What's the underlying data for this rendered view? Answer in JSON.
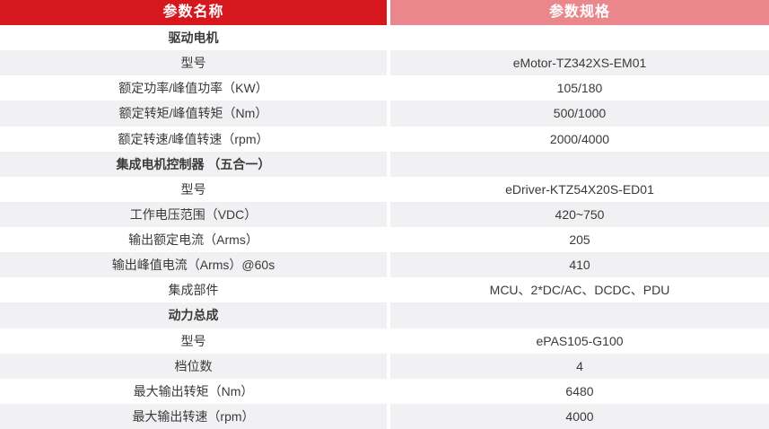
{
  "colors": {
    "header_left_bg": "#d7171e",
    "header_right_bg": "#e9878c",
    "header_text": "#ffffff",
    "row_alt_bg": "#f1f1f3",
    "row_bg": "#ffffff",
    "text": "#3a3a3a"
  },
  "table": {
    "header": {
      "name_label": "参数名称",
      "spec_label": "参数规格"
    },
    "rows": [
      {
        "type": "section",
        "name": "驱动电机",
        "value": ""
      },
      {
        "type": "data",
        "name": "型号",
        "value": "eMotor-TZ342XS-EM01"
      },
      {
        "type": "data",
        "name": "额定功率/峰值功率（KW）",
        "value": "105/180"
      },
      {
        "type": "data",
        "name": "额定转矩/峰值转矩（Nm）",
        "value": "500/1000"
      },
      {
        "type": "data",
        "name": "额定转速/峰值转速（rpm）",
        "value": "2000/4000"
      },
      {
        "type": "section",
        "name": "集成电机控制器 （五合一）",
        "value": ""
      },
      {
        "type": "data",
        "name": "型号",
        "value": "eDriver-KTZ54X20S-ED01"
      },
      {
        "type": "data",
        "name": "工作电压范围（VDC）",
        "value": "420~750"
      },
      {
        "type": "data",
        "name": "输出额定电流（Arms）",
        "value": "205"
      },
      {
        "type": "data",
        "name": "输出峰值电流（Arms）@60s",
        "value": "410"
      },
      {
        "type": "data",
        "name": "集成部件",
        "value": "MCU、2*DC/AC、DCDC、PDU"
      },
      {
        "type": "section",
        "name": "动力总成",
        "value": ""
      },
      {
        "type": "data",
        "name": "型号",
        "value": "ePAS105-G100"
      },
      {
        "type": "data",
        "name": "档位数",
        "value": "4"
      },
      {
        "type": "data",
        "name": "最大输出转矩（Nm）",
        "value": "6480"
      },
      {
        "type": "data",
        "name": "最大输出转速（rpm）",
        "value": "4000"
      }
    ]
  }
}
